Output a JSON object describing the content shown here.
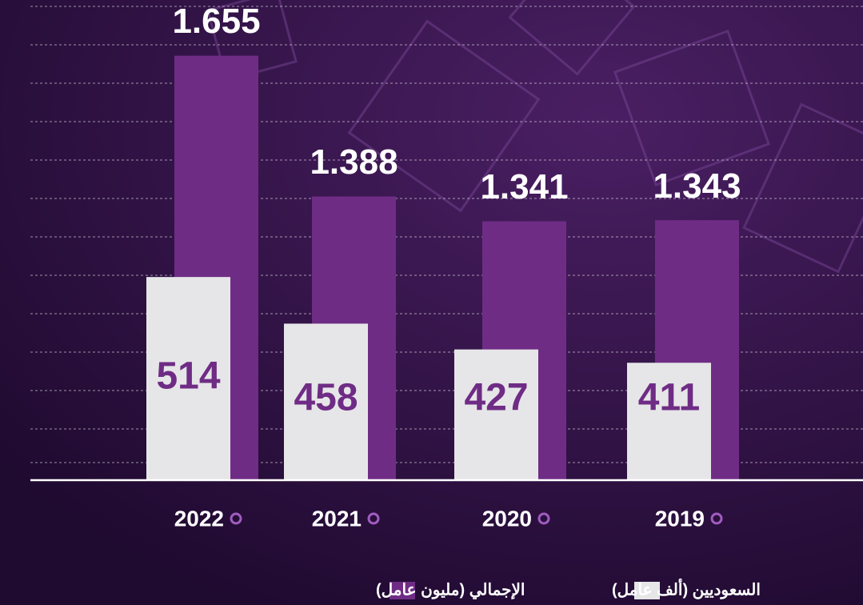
{
  "chart_data": {
    "type": "bar",
    "categories": [
      "2022",
      "2021",
      "2020",
      "2019"
    ],
    "series": [
      {
        "name": "الإجمالي (مليون عامل)",
        "color": "#6f2c85",
        "values": [
          1.655,
          1.388,
          1.341,
          1.343
        ]
      },
      {
        "name": "السعوديين (ألف عامل)",
        "color": "#e6e6e8",
        "axis": "y2",
        "values": [
          514,
          458,
          427,
          411
        ]
      }
    ],
    "ylim": [
      0.85,
      1.75
    ],
    "y2lim": [
      270,
      840
    ]
  }
}
